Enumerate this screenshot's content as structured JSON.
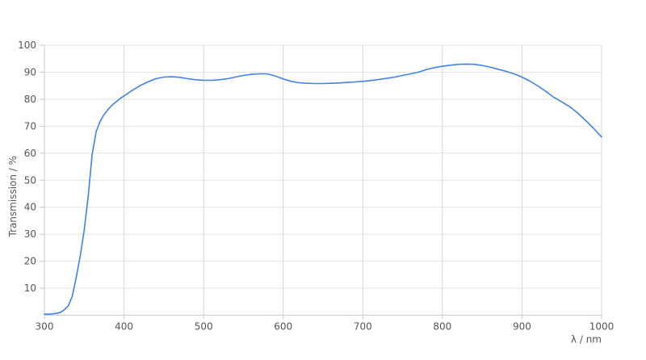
{
  "chart_data": {
    "type": "line",
    "title": "",
    "xlabel": "λ / nm",
    "ylabel": "Transmission / %",
    "xlim": [
      300,
      1000
    ],
    "ylim": [
      0,
      100
    ],
    "x_ticks": [
      300,
      400,
      500,
      600,
      700,
      800,
      900,
      1000
    ],
    "y_ticks": [
      10,
      20,
      30,
      40,
      50,
      60,
      70,
      80,
      90,
      100
    ],
    "grid": true,
    "legend": "none",
    "series": [
      {
        "name": "Transmission",
        "color": "#4181e8",
        "points": [
          [
            300,
            0.4
          ],
          [
            305,
            0.4
          ],
          [
            310,
            0.5
          ],
          [
            315,
            0.7
          ],
          [
            320,
            1
          ],
          [
            325,
            2
          ],
          [
            330,
            3.5
          ],
          [
            335,
            7
          ],
          [
            340,
            14
          ],
          [
            345,
            22
          ],
          [
            350,
            31.5
          ],
          [
            355,
            44
          ],
          [
            360,
            59.5
          ],
          [
            365,
            68
          ],
          [
            370,
            71.8
          ],
          [
            375,
            74.3
          ],
          [
            380,
            76.2
          ],
          [
            385,
            77.8
          ],
          [
            390,
            79
          ],
          [
            395,
            80.2
          ],
          [
            400,
            81.2
          ],
          [
            410,
            83.2
          ],
          [
            420,
            85
          ],
          [
            430,
            86.4
          ],
          [
            440,
            87.6
          ],
          [
            450,
            88.2
          ],
          [
            460,
            88.3
          ],
          [
            470,
            88.1
          ],
          [
            480,
            87.6
          ],
          [
            490,
            87.2
          ],
          [
            500,
            87
          ],
          [
            510,
            87
          ],
          [
            520,
            87.2
          ],
          [
            530,
            87.6
          ],
          [
            540,
            88.2
          ],
          [
            550,
            88.8
          ],
          [
            560,
            89.2
          ],
          [
            570,
            89.4
          ],
          [
            580,
            89.4
          ],
          [
            590,
            88.6
          ],
          [
            600,
            87.5
          ],
          [
            610,
            86.6
          ],
          [
            620,
            86.1
          ],
          [
            630,
            85.9
          ],
          [
            640,
            85.8
          ],
          [
            650,
            85.8
          ],
          [
            660,
            85.9
          ],
          [
            670,
            86
          ],
          [
            680,
            86.2
          ],
          [
            690,
            86.4
          ],
          [
            700,
            86.6
          ],
          [
            710,
            86.9
          ],
          [
            720,
            87.3
          ],
          [
            730,
            87.7
          ],
          [
            740,
            88.2
          ],
          [
            750,
            88.8
          ],
          [
            760,
            89.4
          ],
          [
            770,
            90
          ],
          [
            780,
            91
          ],
          [
            790,
            91.7
          ],
          [
            800,
            92.2
          ],
          [
            810,
            92.6
          ],
          [
            820,
            92.9
          ],
          [
            830,
            93
          ],
          [
            840,
            92.9
          ],
          [
            850,
            92.5
          ],
          [
            860,
            91.9
          ],
          [
            870,
            91.1
          ],
          [
            880,
            90.3
          ],
          [
            890,
            89.4
          ],
          [
            900,
            88.2
          ],
          [
            910,
            86.7
          ],
          [
            920,
            84.9
          ],
          [
            930,
            82.9
          ],
          [
            940,
            80.7
          ],
          [
            950,
            79
          ],
          [
            960,
            77.2
          ],
          [
            970,
            74.9
          ],
          [
            980,
            72.1
          ],
          [
            990,
            69.2
          ],
          [
            1000,
            66
          ]
        ]
      }
    ]
  },
  "colors": {
    "background": "#ffffff",
    "grid_horizontal": "#e4e4e4",
    "grid_vertical": "#d8d8d8",
    "axis_line": "#c8c8c8",
    "label_text": "#555555",
    "line": "#4181e8"
  }
}
